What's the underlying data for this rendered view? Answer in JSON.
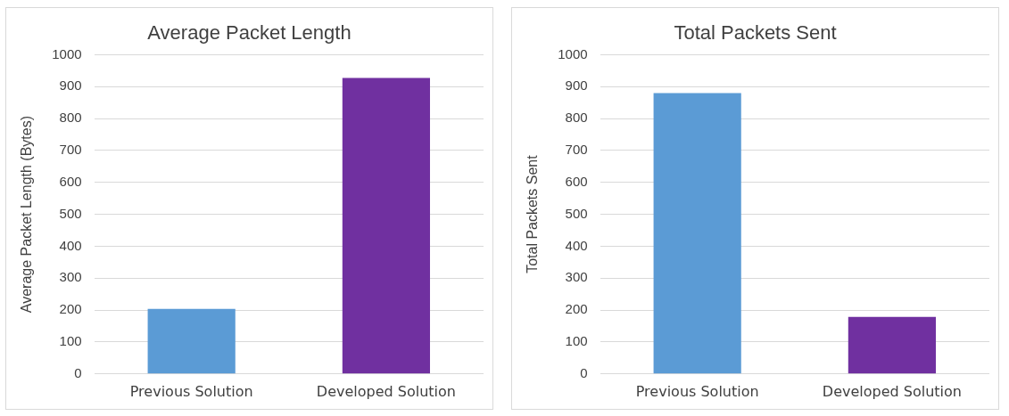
{
  "chart_data": [
    {
      "type": "bar",
      "title": "Average Packet Length",
      "ylabel": "Average Packet Length (Bytes)",
      "categories": [
        "Previous Solution",
        "Developed Solution"
      ],
      "values": [
        204,
        927
      ],
      "colors": [
        "#5b9bd5",
        "#7030a0"
      ],
      "ylim": [
        0,
        1000
      ],
      "yticks": [
        0,
        100,
        200,
        300,
        400,
        500,
        600,
        700,
        800,
        900,
        1000
      ],
      "grid": "y"
    },
    {
      "type": "bar",
      "title": "Total Packets Sent",
      "ylabel": "Total Packets Sent",
      "categories": [
        "Previous Solution",
        "Developed Solution"
      ],
      "values": [
        880,
        179
      ],
      "colors": [
        "#5b9bd5",
        "#7030a0"
      ],
      "ylim": [
        0,
        1000
      ],
      "yticks": [
        0,
        100,
        200,
        300,
        400,
        500,
        600,
        700,
        800,
        900,
        1000
      ],
      "grid": "y"
    }
  ]
}
